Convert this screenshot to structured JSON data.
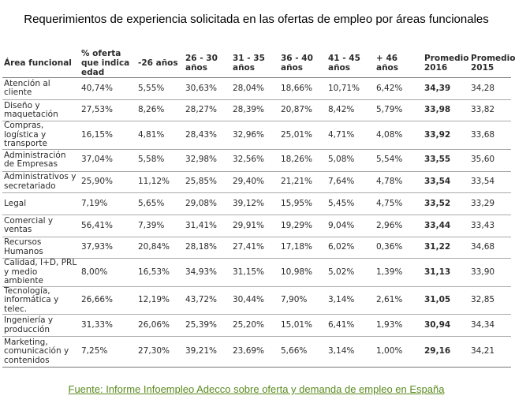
{
  "title": "Requerimientos de experiencia solicitada en las ofertas de empleo por áreas funcionales",
  "columns": [
    "Área funcional",
    "% oferta que indica edad",
    "-26 años",
    "26 - 30 años",
    "31 - 35 años",
    "36 - 40 años",
    "41 - 45 años",
    "+ 46 años",
    "Promedio 2016",
    "Promedio 2015"
  ],
  "rows": [
    [
      "Atención al cliente",
      "40,74%",
      "5,55%",
      "30,63%",
      "28,04%",
      "18,66%",
      "10,71%",
      "6,42%",
      "34,39",
      "34,28"
    ],
    [
      "Diseño y maquetación",
      "27,53%",
      "8,26%",
      "28,27%",
      "28,39%",
      "20,87%",
      "8,42%",
      "5,79%",
      "33,98",
      "33,82"
    ],
    [
      "Compras, logística y transporte",
      "16,15%",
      "4,81%",
      "28,43%",
      "32,96%",
      "25,01%",
      "4,71%",
      "4,08%",
      "33,92",
      "33,68"
    ],
    [
      "Administración de Empresas",
      "37,04%",
      "5,58%",
      "32,98%",
      "32,56%",
      "18,26%",
      "5,08%",
      "5,54%",
      "33,55",
      "35,60"
    ],
    [
      "Administrativos y secretariado",
      "25,90%",
      "11,12%",
      "25,85%",
      "29,40%",
      "21,21%",
      "7,64%",
      "4,78%",
      "33,54",
      "33,54"
    ],
    [
      "Legal",
      "7,19%",
      "5,65%",
      "29,08%",
      "39,12%",
      "15,95%",
      "5,45%",
      "4,75%",
      "33,52",
      "33,29"
    ],
    [
      "Comercial y ventas",
      "56,41%",
      "7,39%",
      "31,41%",
      "29,91%",
      "19,29%",
      "9,04%",
      "2,96%",
      "33,44",
      "33,43"
    ],
    [
      "Recursos Humanos",
      "37,93%",
      "20,84%",
      "28,18%",
      "27,41%",
      "17,18%",
      "6,02%",
      "0,36%",
      "31,22",
      "34,68"
    ],
    [
      "Calidad, I+D, PRL y medio ambiente",
      "8,00%",
      "16,53%",
      "34,93%",
      "31,15%",
      "10,98%",
      "5,02%",
      "1,39%",
      "31,13",
      "33,90"
    ],
    [
      "Tecnología, informática y telec.",
      "26,66%",
      "12,19%",
      "43,72%",
      "30,44%",
      "7,90%",
      "3,14%",
      "2,61%",
      "31,05",
      "32,85"
    ],
    [
      "Ingeniería y producción",
      "31,33%",
      "26,06%",
      "25,39%",
      "25,20%",
      "15,01%",
      "6,41%",
      "1,93%",
      "30,94",
      "34,34"
    ],
    [
      "Marketing, comunicación y contenidos",
      "7,25%",
      "27,30%",
      "39,21%",
      "23,69%",
      "5,66%",
      "3,14%",
      "1,00%",
      "29,16",
      "34,21"
    ]
  ],
  "source": "Fuente: Informe Infoempleo Adecco sobre oferta y demanda de empleo en España"
}
